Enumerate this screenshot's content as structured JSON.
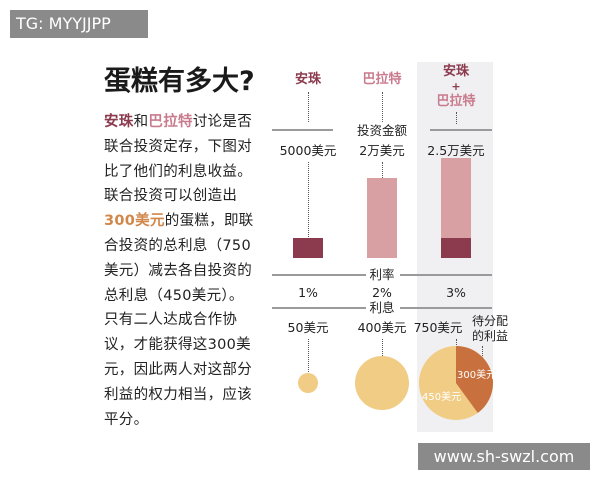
{
  "watermarks": {
    "top_left": "TG: MYYJJPP",
    "bottom_right": "www.sh-swzl.com"
  },
  "title": "蛋糕有多大?",
  "paragraph": {
    "name1": "安珠",
    "and": "和",
    "name2": "巴拉特",
    "text1": "讨论是否联合投资定存，下图对比了他们的利息收益。联合投资可以创造出",
    "highlight": "300美元",
    "text2": "的蛋糕，即联合投资的总利息（750美元）减去各自投资的总利息（450美元）。只有二人达成合作协议，才能获得这300美元，因此两人对这部分利益的权力相当，应该平分。"
  },
  "colors": {
    "anzhu": "#8c3a4e",
    "balate": "#d9a0a4",
    "interest": "#f0cc85",
    "surplus": "#c8703e"
  },
  "columns": [
    {
      "name": "安珠",
      "amount": "5000美元",
      "amount_value": 5000,
      "rate": "1%",
      "interest": "50美元",
      "interest_value": 50
    },
    {
      "name": "巴拉特",
      "amount": "2万美元",
      "amount_value": 20000,
      "rate": "2%",
      "interest": "400美元",
      "interest_value": 400
    },
    {
      "name_a": "安珠",
      "plus": "+",
      "name_b": "巴拉特",
      "amount": "2.5万美元",
      "amount_value": 25000,
      "rate": "3%",
      "interest": "750美元",
      "interest_value": 750,
      "pie": {
        "base": "450美元",
        "base_value": 450,
        "surplus": "300美元",
        "surplus_value": 300,
        "surplus_label": "待分配的利益"
      }
    }
  ],
  "row_labels": {
    "amount": "投资金额",
    "rate": "利率",
    "interest": "利息"
  }
}
